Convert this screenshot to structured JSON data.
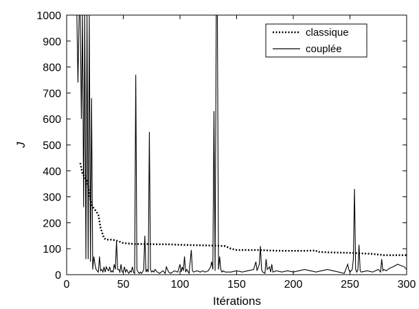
{
  "chart_data": {
    "type": "line",
    "title": "",
    "xlabel": "Itérations",
    "ylabel": "J",
    "xlim": [
      0,
      300
    ],
    "ylim": [
      0,
      1000
    ],
    "xticks": [
      0,
      50,
      100,
      150,
      200,
      250,
      300
    ],
    "yticks": [
      0,
      100,
      200,
      300,
      400,
      500,
      600,
      700,
      800,
      900,
      1000
    ],
    "grid": false,
    "legend": "top-right",
    "series": [
      {
        "name": "classique",
        "style": "dotted",
        "color": "#000000",
        "x": [
          12,
          14,
          16,
          18,
          19,
          20,
          21,
          22,
          24,
          26,
          28,
          30,
          33,
          35,
          40,
          45,
          48,
          50,
          55,
          60,
          70,
          80,
          90,
          100,
          110,
          120,
          130,
          140,
          145,
          150,
          160,
          170,
          180,
          190,
          200,
          210,
          220,
          221,
          230,
          240,
          250,
          260,
          270,
          280,
          290,
          300
        ],
        "y": [
          430,
          390,
          375,
          360,
          340,
          310,
          290,
          270,
          255,
          245,
          230,
          180,
          140,
          135,
          135,
          130,
          125,
          122,
          120,
          118,
          118,
          117,
          117,
          115,
          114,
          113,
          112,
          110,
          100,
          95,
          95,
          95,
          93,
          92,
          92,
          92,
          93,
          88,
          86,
          85,
          84,
          82,
          80,
          75,
          75,
          75
        ]
      },
      {
        "name": "couplée",
        "style": "solid",
        "color": "#000000",
        "x": [
          8,
          9,
          10,
          11,
          12,
          13,
          14,
          15,
          16,
          17,
          18,
          19,
          20,
          21,
          22,
          23,
          24,
          25,
          26,
          27,
          28,
          29,
          30,
          31,
          32,
          33,
          34,
          35,
          36,
          37,
          38,
          39,
          40,
          41,
          42,
          43,
          44,
          45,
          46,
          47,
          48,
          49,
          50,
          51,
          52,
          53,
          54,
          55,
          56,
          57,
          58,
          59,
          60,
          61,
          62,
          63,
          64,
          65,
          66,
          67,
          68,
          69,
          70,
          71,
          72,
          73,
          74,
          75,
          76,
          77,
          78,
          80,
          82,
          85,
          87,
          88,
          90,
          92,
          95,
          98,
          100,
          101,
          102,
          103,
          104,
          105,
          106,
          108,
          110,
          111,
          112,
          115,
          118,
          120,
          122,
          125,
          127,
          128,
          129,
          130,
          131,
          132,
          133,
          134,
          135,
          136,
          137,
          138,
          140,
          145,
          150,
          155,
          160,
          165,
          167,
          168,
          170,
          171,
          172,
          173,
          175,
          176,
          177,
          179,
          180,
          181,
          182,
          185,
          190,
          195,
          200,
          205,
          210,
          215,
          220,
          225,
          230,
          235,
          240,
          245,
          248,
          249,
          250,
          251,
          252,
          253,
          254,
          255,
          256,
          257,
          258,
          259,
          260,
          265,
          270,
          275,
          277,
          278,
          279,
          280,
          282,
          285,
          288,
          290,
          292,
          295,
          298,
          300
        ],
        "y": [
          1000,
          1000,
          740,
          1000,
          1000,
          600,
          1000,
          260,
          1000,
          60,
          1000,
          60,
          1000,
          50,
          680,
          20,
          70,
          40,
          20,
          15,
          10,
          70,
          15,
          20,
          10,
          30,
          10,
          30,
          20,
          15,
          30,
          10,
          15,
          10,
          40,
          20,
          130,
          20,
          20,
          10,
          40,
          10,
          10,
          30,
          10,
          20,
          10,
          5,
          15,
          10,
          30,
          10,
          5,
          770,
          20,
          10,
          5,
          10,
          5,
          10,
          20,
          150,
          10,
          20,
          10,
          550,
          20,
          10,
          15,
          10,
          20,
          10,
          5,
          15,
          5,
          30,
          10,
          5,
          15,
          10,
          40,
          10,
          30,
          15,
          70,
          10,
          20,
          5,
          95,
          15,
          10,
          15,
          10,
          15,
          10,
          15,
          30,
          50,
          20,
          630,
          15,
          1000,
          1000,
          20,
          70,
          20,
          10,
          15,
          10,
          10,
          15,
          10,
          15,
          20,
          50,
          15,
          40,
          110,
          20,
          10,
          5,
          60,
          20,
          30,
          10,
          40,
          10,
          15,
          10,
          15,
          10,
          15,
          20,
          15,
          10,
          15,
          20,
          15,
          10,
          5,
          40,
          20,
          10,
          15,
          20,
          60,
          330,
          20,
          10,
          20,
          115,
          15,
          10,
          15,
          10,
          20,
          10,
          60,
          15,
          20,
          15,
          25,
          30,
          35,
          40,
          35,
          30,
          20
        ]
      }
    ]
  }
}
